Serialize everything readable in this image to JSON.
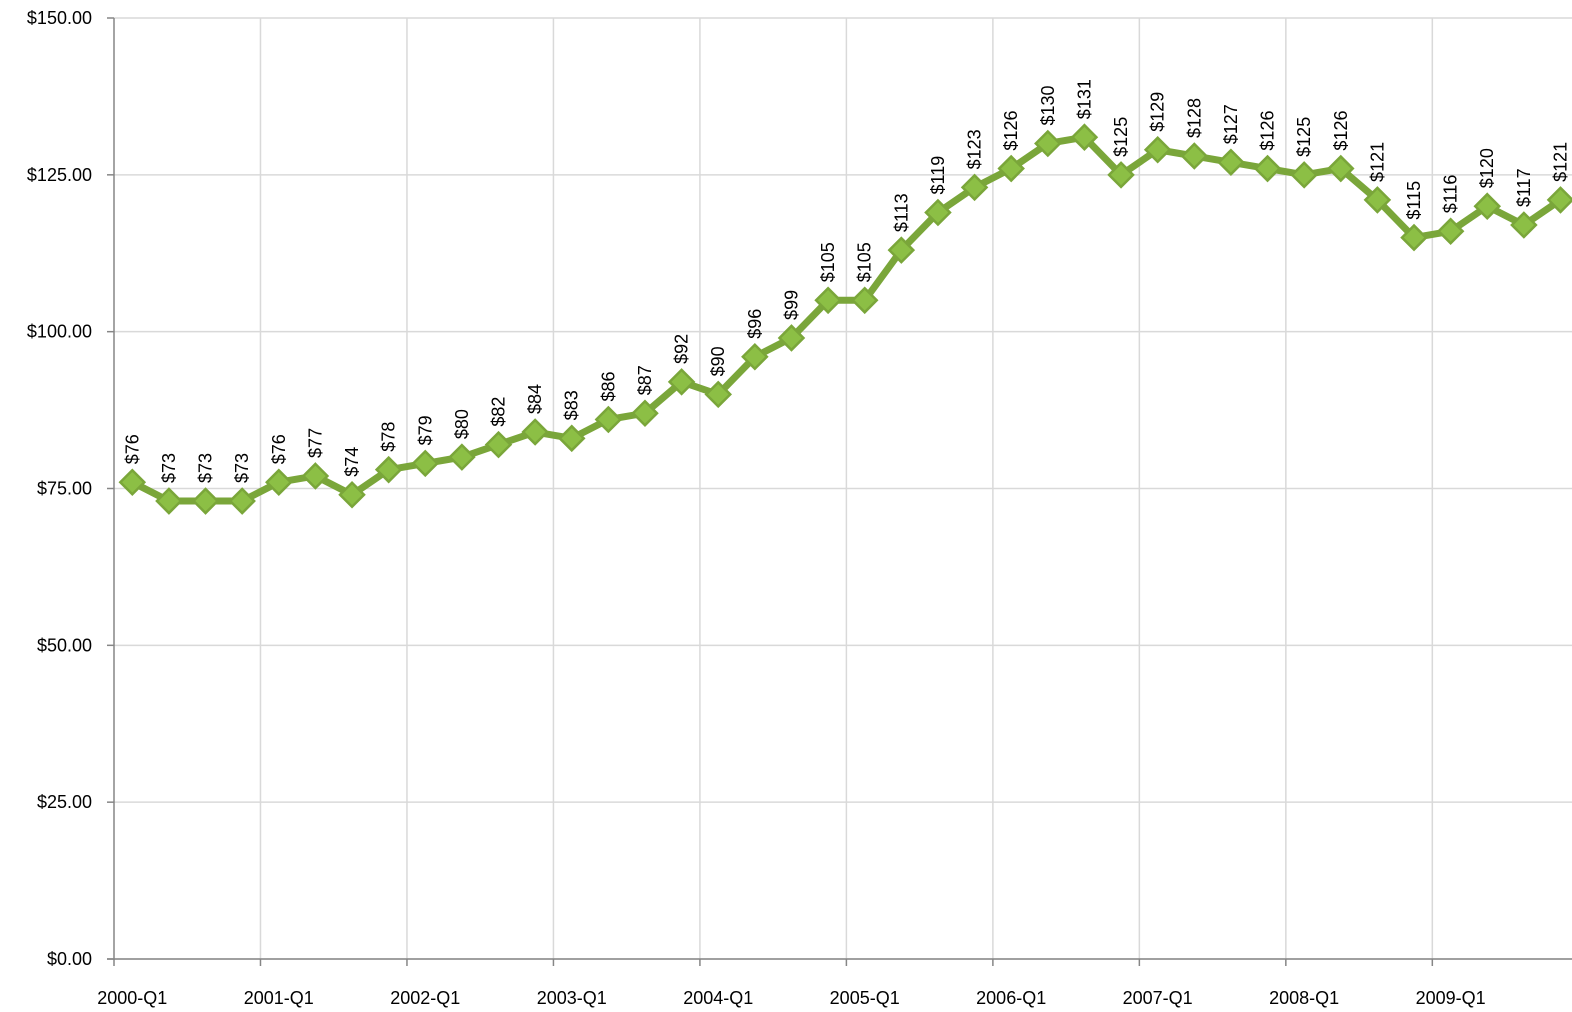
{
  "chart_data": {
    "type": "line",
    "color": "#7aa63a",
    "categories": [
      "2000-Q1",
      null,
      null,
      null,
      "2001-Q1",
      null,
      null,
      null,
      "2002-Q1",
      null,
      null,
      null,
      "2003-Q1",
      null,
      null,
      null,
      "2004-Q1",
      null,
      null,
      null,
      "2005-Q1",
      null,
      null,
      null,
      "2006-Q1",
      null,
      null,
      null,
      "2007-Q1",
      null,
      null,
      null,
      "2008-Q1",
      null,
      null,
      null,
      "2009-Q1",
      null,
      null,
      null
    ],
    "values": [
      76,
      73,
      73,
      73,
      76,
      77,
      74,
      78,
      79,
      80,
      82,
      84,
      83,
      86,
      87,
      92,
      90,
      96,
      99,
      105,
      105,
      113,
      119,
      123,
      126,
      130,
      131,
      125,
      129,
      128,
      127,
      126,
      125,
      126,
      121,
      115,
      116,
      120,
      117,
      121
    ],
    "value_labels": [
      "$76",
      "$73",
      "$73",
      "$73",
      "$76",
      "$77",
      "$74",
      "$78",
      "$79",
      "$80",
      "$82",
      "$84",
      "$83",
      "$86",
      "$87",
      "$92",
      "$90",
      "$96",
      "$99",
      "$105",
      "$105",
      "$113",
      "$119",
      "$123",
      "$126",
      "$130",
      "$131",
      "$125",
      "$129",
      "$128",
      "$127",
      "$126",
      "$125",
      "$126",
      "$121",
      "$115",
      "$116",
      "$120",
      "$117",
      "$121"
    ],
    "ylim": [
      0,
      150
    ],
    "yticks": [
      {
        "value": 0,
        "label": "$0.00"
      },
      {
        "value": 25,
        "label": "$25.00"
      },
      {
        "value": 50,
        "label": "$50.00"
      },
      {
        "value": 75,
        "label": "$75.00"
      },
      {
        "value": 100,
        "label": "$100.00"
      },
      {
        "value": 125,
        "label": "$125.00"
      },
      {
        "value": 150,
        "label": "$150.00"
      }
    ],
    "grid": true
  }
}
